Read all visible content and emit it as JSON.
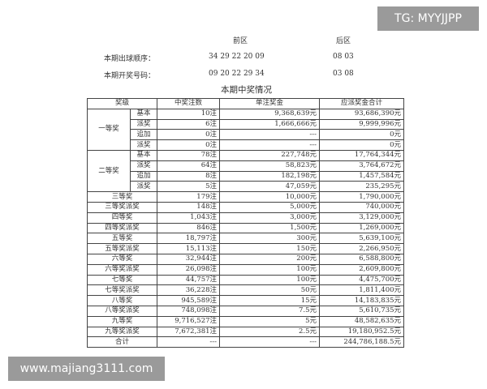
{
  "header": {
    "front_label": "前区",
    "back_label": "后区",
    "draw_order_label": "本期出球顺序：",
    "draw_order_front": "34 29 22 20 09",
    "draw_order_back": "08 03",
    "winning_label": "本期开奖号码：",
    "winning_front": "09 20 22 29 34",
    "winning_back": "03 08"
  },
  "table_title": "本期中奖情况",
  "columns": [
    "奖级",
    "中奖注数",
    "单注奖金",
    "应派奖金合计"
  ],
  "groups": [
    {
      "name": "一等奖",
      "rows": [
        [
          "基本",
          "10注",
          "9,368,639元",
          "93,686,390元"
        ],
        [
          "派奖",
          "6注",
          "1,666,666元",
          "9,999,996元"
        ],
        [
          "追加",
          "0注",
          "---",
          "0元"
        ],
        [
          "派奖",
          "0注",
          "---",
          "0元"
        ]
      ]
    },
    {
      "name": "二等奖",
      "rows": [
        [
          "基本",
          "78注",
          "227,748元",
          "17,764,344元"
        ],
        [
          "派奖",
          "64注",
          "58,823元",
          "3,764,672元"
        ],
        [
          "追加",
          "8注",
          "182,198元",
          "1,457,584元"
        ],
        [
          "派奖",
          "5注",
          "47,059元",
          "235,295元"
        ]
      ]
    }
  ],
  "rows": [
    [
      "三等奖",
      "179注",
      "10,000元",
      "1,790,000元"
    ],
    [
      "三等奖派奖",
      "148注",
      "5,000元",
      "740,000元"
    ],
    [
      "四等奖",
      "1,043注",
      "3,000元",
      "3,129,000元"
    ],
    [
      "四等奖派奖",
      "846注",
      "1,500元",
      "1,269,000元"
    ],
    [
      "五等奖",
      "18,797注",
      "300元",
      "5,639,100元"
    ],
    [
      "五等奖派奖",
      "15,113注",
      "150元",
      "2,266,950元"
    ],
    [
      "六等奖",
      "32,944注",
      "200元",
      "6,588,800元"
    ],
    [
      "六等奖派奖",
      "26,098注",
      "100元",
      "2,609,800元"
    ],
    [
      "七等奖",
      "44,757注",
      "100元",
      "4,475,700元"
    ],
    [
      "七等奖派奖",
      "36,228注",
      "50元",
      "1,811,400元"
    ],
    [
      "八等奖",
      "945,589注",
      "15元",
      "14,183,835元"
    ],
    [
      "八等奖派奖",
      "748,098注",
      "7.5元",
      "5,610,735元"
    ],
    [
      "九等奖",
      "9,716,527注",
      "5元",
      "48,582,635元"
    ],
    [
      "九等奖派奖",
      "7,672,381注",
      "2.5元",
      "19,180,952.5元"
    ],
    [
      "合计",
      "---",
      "---",
      "244,786,188.5元"
    ]
  ],
  "watermarks": {
    "top": "TG: MYYJJPP",
    "bottom": "www.majiang3111.com"
  }
}
